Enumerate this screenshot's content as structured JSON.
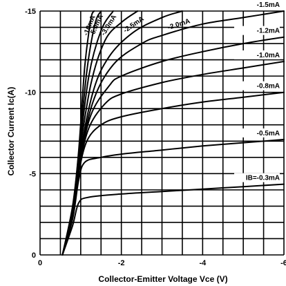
{
  "chart_data": {
    "type": "line",
    "title": "",
    "xlabel": "Collector-Emitter Voltage  Vce (V)",
    "ylabel": "Collector Current  Ic(A)",
    "xlim": [
      0,
      -6
    ],
    "ylim": [
      0,
      -15
    ],
    "x_ticks": [
      "0",
      "-2",
      "-4",
      "-6"
    ],
    "y_ticks": [
      "0",
      "-5",
      "-10",
      "-15"
    ],
    "grid": true,
    "series": [
      {
        "name": "IB=-0.3mA",
        "label": "IB=-0.3mA",
        "label_style": "right",
        "points": [
          [
            -0.55,
            0
          ],
          [
            -0.8,
            -1.8
          ],
          [
            -0.95,
            -3.2
          ],
          [
            -1.2,
            -3.55
          ],
          [
            -2,
            -3.75
          ],
          [
            -3,
            -3.9
          ],
          [
            -4,
            -4.05
          ],
          [
            -5,
            -4.2
          ],
          [
            -6,
            -4.35
          ]
        ]
      },
      {
        "name": "-0.5mA",
        "label": "-0.5mA",
        "label_style": "right",
        "points": [
          [
            -0.55,
            0
          ],
          [
            -0.8,
            -2.2
          ],
          [
            -0.95,
            -4.6
          ],
          [
            -1.1,
            -5.7
          ],
          [
            -1.5,
            -6.0
          ],
          [
            -2,
            -6.2
          ],
          [
            -3,
            -6.45
          ],
          [
            -4,
            -6.7
          ],
          [
            -5,
            -6.9
          ],
          [
            -6,
            -7.1
          ]
        ]
      },
      {
        "name": "-0.8mA",
        "label": "-0.8mA",
        "label_style": "right",
        "points": [
          [
            -0.55,
            0
          ],
          [
            -0.8,
            -2.3
          ],
          [
            -0.95,
            -5.0
          ],
          [
            -1.15,
            -7.0
          ],
          [
            -1.5,
            -8.0
          ],
          [
            -2,
            -8.5
          ],
          [
            -3,
            -9.0
          ],
          [
            -4,
            -9.4
          ],
          [
            -5,
            -9.7
          ],
          [
            -6,
            -10.0
          ]
        ]
      },
      {
        "name": "-1.0mA",
        "label": "-1.0mA",
        "label_style": "right",
        "points": [
          [
            -0.55,
            0
          ],
          [
            -0.8,
            -2.4
          ],
          [
            -0.95,
            -5.2
          ],
          [
            -1.2,
            -7.8
          ],
          [
            -1.6,
            -9.3
          ],
          [
            -2,
            -9.9
          ],
          [
            -3,
            -10.6
          ],
          [
            -4,
            -11.1
          ],
          [
            -5,
            -11.5
          ],
          [
            -6,
            -11.9
          ]
        ]
      },
      {
        "name": "-1.2mA",
        "label": "-1.2mA",
        "label_style": "right",
        "points": [
          [
            -0.55,
            0
          ],
          [
            -0.8,
            -2.4
          ],
          [
            -0.95,
            -5.4
          ],
          [
            -1.25,
            -8.6
          ],
          [
            -1.7,
            -10.4
          ],
          [
            -2,
            -11.0
          ],
          [
            -3,
            -11.9
          ],
          [
            -4,
            -12.5
          ],
          [
            -5,
            -13.0
          ],
          [
            -6,
            -13.4
          ]
        ]
      },
      {
        "name": "-1.5mA",
        "label": "-1.5mA",
        "label_style": "right",
        "points": [
          [
            -0.55,
            0
          ],
          [
            -0.8,
            -2.5
          ],
          [
            -0.95,
            -5.5
          ],
          [
            -1.3,
            -9.4
          ],
          [
            -1.8,
            -11.7
          ],
          [
            -2.5,
            -13.0
          ],
          [
            -3,
            -13.5
          ],
          [
            -4,
            -14.2
          ],
          [
            -5,
            -14.6
          ],
          [
            -6,
            -15.0
          ]
        ]
      },
      {
        "name": "-2.0mA",
        "label": "-2.0mA",
        "label_style": "rotated",
        "points": [
          [
            -0.55,
            0
          ],
          [
            -0.8,
            -2.6
          ],
          [
            -0.95,
            -5.7
          ],
          [
            -1.3,
            -10.0
          ],
          [
            -1.7,
            -12.2
          ],
          [
            -2.3,
            -13.7
          ],
          [
            -3.0,
            -14.6
          ],
          [
            -3.5,
            -15.0
          ]
        ]
      },
      {
        "name": "-2.5mA",
        "label": "-2.5mA",
        "label_style": "rotated",
        "points": [
          [
            -0.55,
            0
          ],
          [
            -0.8,
            -2.7
          ],
          [
            -0.95,
            -5.9
          ],
          [
            -1.25,
            -10.5
          ],
          [
            -1.6,
            -13.2
          ],
          [
            -2.0,
            -14.3
          ],
          [
            -2.4,
            -15.0
          ]
        ]
      },
      {
        "name": "-3.0mA",
        "label": "-3.0mA",
        "label_style": "rotated",
        "points": [
          [
            -0.55,
            0
          ],
          [
            -0.8,
            -2.8
          ],
          [
            -0.95,
            -6.0
          ],
          [
            -1.2,
            -11.0
          ],
          [
            -1.5,
            -13.8
          ],
          [
            -1.8,
            -15.0
          ]
        ]
      },
      {
        "name": "-5.0mA",
        "label": "-5.0mA",
        "label_style": "rotated",
        "points": [
          [
            -0.55,
            0
          ],
          [
            -0.8,
            -2.9
          ],
          [
            -0.95,
            -6.2
          ],
          [
            -1.15,
            -11.3
          ],
          [
            -1.35,
            -14.2
          ],
          [
            -1.5,
            -15.0
          ]
        ]
      },
      {
        "name": "-10mA",
        "label": "-10mA",
        "label_style": "rotated",
        "points": [
          [
            -0.55,
            0
          ],
          [
            -0.8,
            -3.0
          ],
          [
            -0.95,
            -6.4
          ],
          [
            -1.1,
            -11.6
          ],
          [
            -1.25,
            -14.5
          ],
          [
            -1.33,
            -15.0
          ]
        ]
      }
    ]
  }
}
